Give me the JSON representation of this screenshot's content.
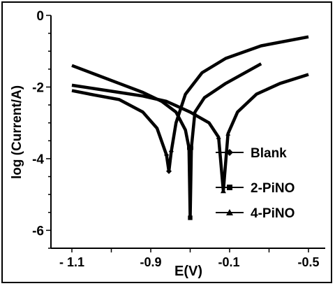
{
  "chart_data": {
    "type": "line",
    "title": "",
    "xlabel": "E(V)",
    "ylabel": "log (Current/A)",
    "ylim": [
      -6.5,
      0
    ],
    "yticks": [
      {
        "value": 0,
        "label": "0"
      },
      {
        "value": -2,
        "label": "-2"
      },
      {
        "value": -4,
        "label": "-4"
      },
      {
        "value": -6,
        "label": "-6"
      }
    ],
    "xtick_labels": [
      "- 1.1",
      "-0.9",
      "-0.1",
      "-0.5"
    ],
    "legend": {
      "position": "right"
    },
    "series": [
      {
        "name": "Blank",
        "marker": "diamond",
        "x": [
          0.0,
          0.1,
          0.2,
          0.3,
          0.36,
          0.4,
          0.41,
          0.42,
          0.44,
          0.48,
          0.55,
          0.65,
          0.8,
          1.0
        ],
        "y": [
          -2.1,
          -2.23,
          -2.35,
          -2.7,
          -3.15,
          -3.9,
          -4.35,
          -3.8,
          -3.0,
          -2.2,
          -1.6,
          -1.2,
          -0.85,
          -0.6
        ]
      },
      {
        "name": "2-PiNO",
        "marker": "square",
        "x": [
          0.0,
          0.1,
          0.2,
          0.3,
          0.38,
          0.44,
          0.48,
          0.495,
          0.5,
          0.505,
          0.52,
          0.56,
          0.65,
          0.8
        ],
        "y": [
          -1.4,
          -1.65,
          -1.9,
          -2.15,
          -2.4,
          -2.7,
          -3.2,
          -3.7,
          -5.65,
          -3.7,
          -2.7,
          -2.3,
          -1.9,
          -1.35
        ]
      },
      {
        "name": "4-PiNO",
        "marker": "triangle",
        "x": [
          0.0,
          0.1,
          0.2,
          0.3,
          0.4,
          0.5,
          0.58,
          0.62,
          0.64,
          0.66,
          0.7,
          0.78,
          0.88,
          1.0
        ],
        "y": [
          -1.95,
          -2.05,
          -2.15,
          -2.25,
          -2.4,
          -2.7,
          -3.0,
          -3.4,
          -4.9,
          -3.3,
          -2.7,
          -2.2,
          -1.9,
          -1.65
        ]
      }
    ]
  }
}
